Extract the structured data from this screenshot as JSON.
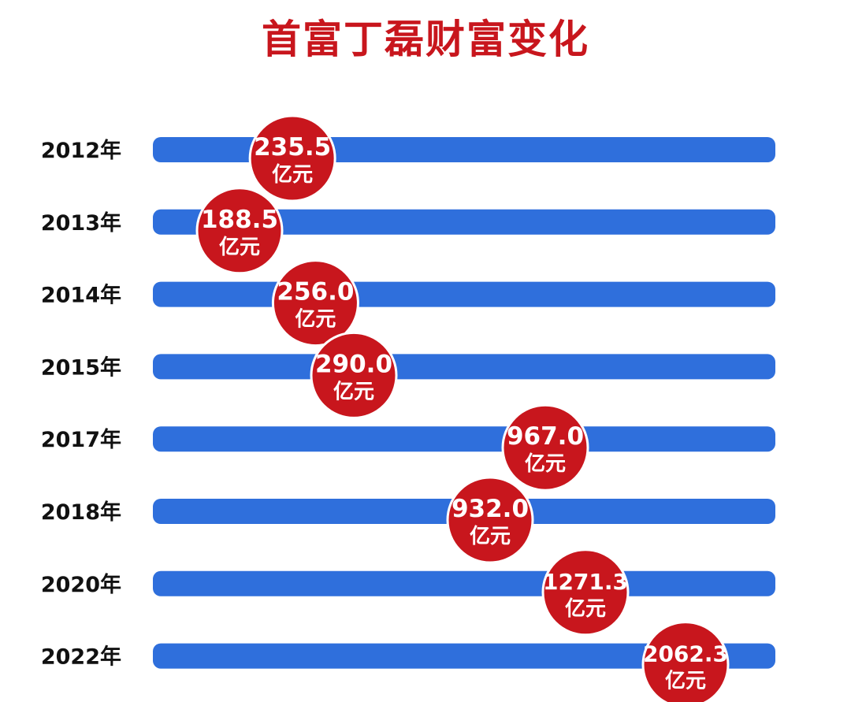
{
  "title": "首富丁磊财富变化",
  "colors": {
    "title": "#c8161d",
    "bar": "#2f6fdc",
    "bubble": "#c8161d",
    "bubble_border": "#ffffff",
    "label": "#111111"
  },
  "chart_data": {
    "type": "bar",
    "orientation": "horizontal",
    "title": "首富丁磊财富变化",
    "categories": [
      "2012年",
      "2013年",
      "2014年",
      "2015年",
      "2017年",
      "2018年",
      "2020年",
      "2022年"
    ],
    "series": [
      {
        "values": [
          235.5,
          188.5,
          256.0,
          290.0,
          967.0,
          932.0,
          1271.3,
          2062.3
        ]
      }
    ],
    "value_labels": [
      "235.5",
      "188.5",
      "256.0",
      "290.0",
      "967.0",
      "932.0",
      "1271.3",
      "2062.3"
    ],
    "unit": "亿元",
    "grid": false,
    "legend": "none"
  }
}
